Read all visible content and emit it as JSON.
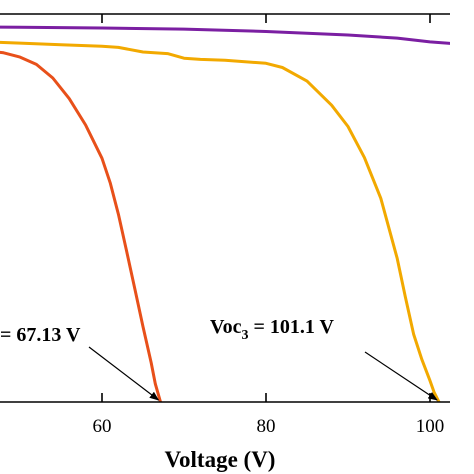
{
  "chart_data": {
    "type": "line",
    "xlabel": "Voltage (V)",
    "xlim": [
      35,
      104
    ],
    "ylim": [
      0,
      1
    ],
    "x_ticks": [
      "60",
      "80",
      "100"
    ],
    "grid": false,
    "series": [
      {
        "color": "#7b1fa2",
        "x": [
          35,
          50,
          60,
          70,
          80,
          90,
          96,
          100,
          104
        ],
        "y": [
          0.968,
          0.966,
          0.964,
          0.961,
          0.955,
          0.946,
          0.938,
          0.928,
          0.922
        ]
      },
      {
        "color": "#f2a900",
        "x": [
          35,
          45,
          50,
          55,
          60,
          62,
          65,
          68,
          70,
          72,
          75,
          80,
          82,
          85,
          88,
          90,
          92,
          94,
          96,
          97,
          98,
          99,
          100,
          100.5,
          101.1
        ],
        "y": [
          0.933,
          0.929,
          0.925,
          0.921,
          0.917,
          0.914,
          0.902,
          0.898,
          0.886,
          0.883,
          0.881,
          0.873,
          0.862,
          0.827,
          0.765,
          0.71,
          0.63,
          0.525,
          0.37,
          0.27,
          0.175,
          0.11,
          0.055,
          0.025,
          0
        ]
      },
      {
        "color": "#e8501a",
        "x": [
          35,
          45,
          48,
          50,
          52,
          54,
          56,
          58,
          60,
          61,
          62,
          63,
          64,
          65,
          66,
          66.5,
          67.13
        ],
        "y": [
          0.91,
          0.908,
          0.9,
          0.889,
          0.87,
          0.835,
          0.782,
          0.714,
          0.628,
          0.565,
          0.484,
          0.389,
          0.292,
          0.194,
          0.101,
          0.047,
          0
        ]
      }
    ],
    "annotations": [
      {
        "text": "= 67.13 V",
        "x": 67.13,
        "y": 0
      },
      {
        "text": "Voc",
        "sub": "3",
        "text_after": " = 101.1 V",
        "x": 101.1,
        "y": 0
      }
    ]
  }
}
